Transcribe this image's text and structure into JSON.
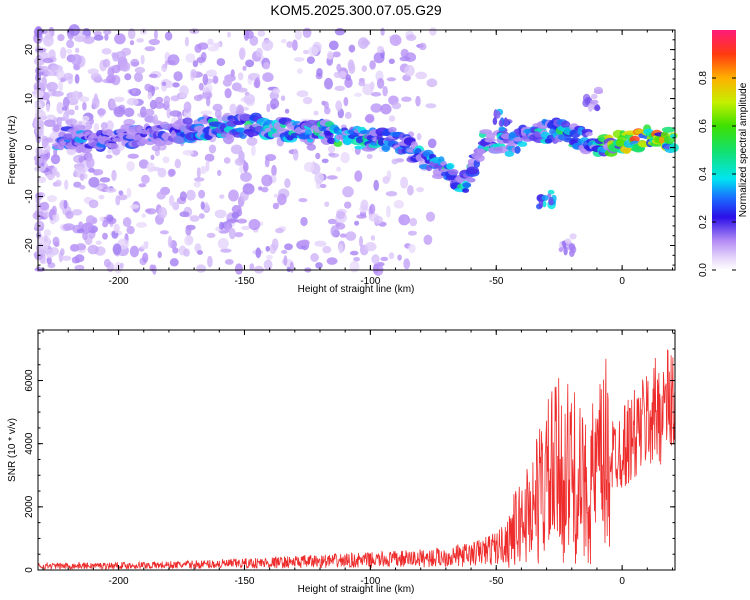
{
  "title": "KOM5.2025.300.07.05.G29",
  "chart_data": [
    {
      "type": "heatmap",
      "name": "spectrogram",
      "xlabel": "Height of straight line (km)",
      "ylabel": "Frequency (Hz)",
      "xlim": [
        -232,
        21
      ],
      "ylim": [
        -25,
        24
      ],
      "xticks": [
        -200,
        -150,
        -100,
        -50,
        0
      ],
      "yticks": [
        -20,
        -10,
        0,
        10,
        20
      ],
      "colorbar": {
        "label": "Normalized spectral amplitude",
        "range": [
          0,
          1
        ],
        "ticks": [
          0.0,
          0.2,
          0.4,
          0.6,
          0.8
        ]
      },
      "ridge": [
        {
          "x": -225,
          "f": 2.0,
          "amp": 0.35
        },
        {
          "x": -210,
          "f": 1.5,
          "amp": 0.3
        },
        {
          "x": -190,
          "f": 2.5,
          "amp": 0.3
        },
        {
          "x": -175,
          "f": 3.5,
          "amp": 0.35
        },
        {
          "x": -160,
          "f": 4.0,
          "amp": 0.45
        },
        {
          "x": -145,
          "f": 4.5,
          "amp": 0.5
        },
        {
          "x": -130,
          "f": 3.5,
          "amp": 0.45
        },
        {
          "x": -115,
          "f": 3.0,
          "amp": 0.5
        },
        {
          "x": -100,
          "f": 1.5,
          "amp": 0.55
        },
        {
          "x": -90,
          "f": 2.0,
          "amp": 0.45
        },
        {
          "x": -80,
          "f": -2.0,
          "amp": 0.4
        },
        {
          "x": -70,
          "f": -5.0,
          "amp": 0.45
        },
        {
          "x": -62,
          "f": -7.5,
          "amp": 0.45
        },
        {
          "x": -55,
          "f": 2.0,
          "amp": 0.4
        },
        {
          "x": -45,
          "f": 0.5,
          "amp": 0.4
        },
        {
          "x": -35,
          "f": 3.0,
          "amp": 0.45
        },
        {
          "x": -25,
          "f": 3.5,
          "amp": 0.5
        },
        {
          "x": -15,
          "f": 1.5,
          "amp": 0.4
        },
        {
          "x": -5,
          "f": 0.5,
          "amp": 0.7
        },
        {
          "x": 5,
          "f": 1.5,
          "amp": 0.85
        },
        {
          "x": 15,
          "f": 2.5,
          "amp": 0.9
        },
        {
          "x": 20,
          "f": 1.5,
          "amp": 0.8
        }
      ],
      "branches": [
        {
          "x": -30,
          "f": -10.5,
          "amp": 0.35
        },
        {
          "x": -22,
          "f": -20.0,
          "amp": 0.12
        },
        {
          "x": -48,
          "f": 5.5,
          "amp": 0.35
        },
        {
          "x": -12,
          "f": 10.0,
          "amp": 0.15
        }
      ]
    },
    {
      "type": "line",
      "name": "snr",
      "xlabel": "Height of straight line (km)",
      "ylabel": "SNR (10 * v/v)",
      "xlim": [
        -232,
        21
      ],
      "ylim": [
        0,
        7600
      ],
      "xticks": [
        -200,
        -150,
        -100,
        -50,
        0
      ],
      "yticks": [
        0,
        2000,
        4000,
        6000
      ],
      "color": "#ee2c2c",
      "series": [
        {
          "name": "SNR",
          "x": [
            -232,
            -200,
            -175,
            -150,
            -125,
            -100,
            -75,
            -60,
            -50,
            -42,
            -35,
            -30,
            -25,
            -20,
            -15,
            -10,
            -5,
            0,
            5,
            10,
            15,
            21
          ],
          "values": [
            180,
            200,
            230,
            300,
            380,
            450,
            550,
            700,
            1000,
            1500,
            2400,
            3200,
            3600,
            3500,
            2800,
            3400,
            4200,
            4600,
            5000,
            5600,
            6000,
            6400
          ]
        }
      ]
    }
  ]
}
